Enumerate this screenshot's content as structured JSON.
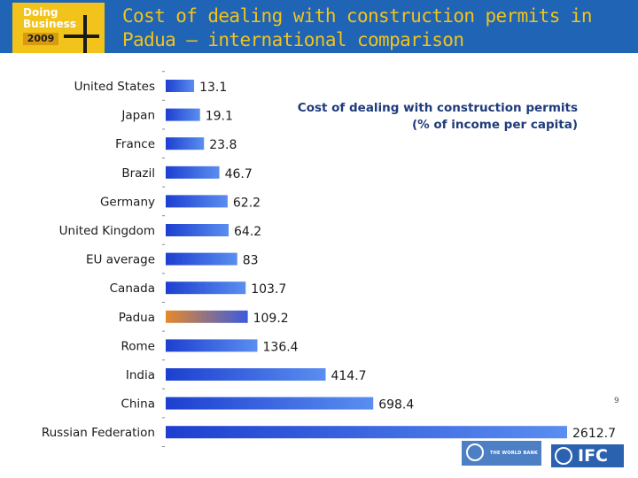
{
  "header": {
    "logo_line1": "Doing",
    "logo_line2": "Business",
    "logo_year": "2009",
    "title_line1": "Cost of dealing with construction permits in",
    "title_line2": "Padua – international comparison"
  },
  "page_number": "9",
  "footer": {
    "world_bank_label": "THE WORLD BANK",
    "ifc_label": "IFC"
  },
  "colors": {
    "header_bg": "#1f64b5",
    "title_text": "#f2c31a",
    "bar_blue": "#2a4fe0",
    "bar_highlight": "#e58a2b",
    "chart_title_text": "#1f3b7a"
  },
  "chart_data": {
    "type": "bar",
    "orientation": "horizontal",
    "title": "Cost of dealing with construction permits",
    "subtitle": "(% of income per capita)",
    "categories": [
      "United States",
      "Japan",
      "France",
      "Brazil",
      "Germany",
      "United Kingdom",
      "EU average",
      "Canada",
      "Padua",
      "Rome",
      "India",
      "China",
      "Russian Federation"
    ],
    "values": [
      13.1,
      19.1,
      23.8,
      46.7,
      62.2,
      64.2,
      83,
      103.7,
      109.2,
      136.4,
      414.7,
      698.4,
      2612.7
    ],
    "value_labels": [
      "13.1",
      "19.1",
      "23.8",
      "46.7",
      "62.2",
      "64.2",
      "83",
      "103.7",
      "109.2",
      "136.4",
      "414.7",
      "698.4",
      "2612.7"
    ],
    "highlight": "Padua",
    "axis_scale": "sqrt",
    "grid": false,
    "legend": "none"
  }
}
